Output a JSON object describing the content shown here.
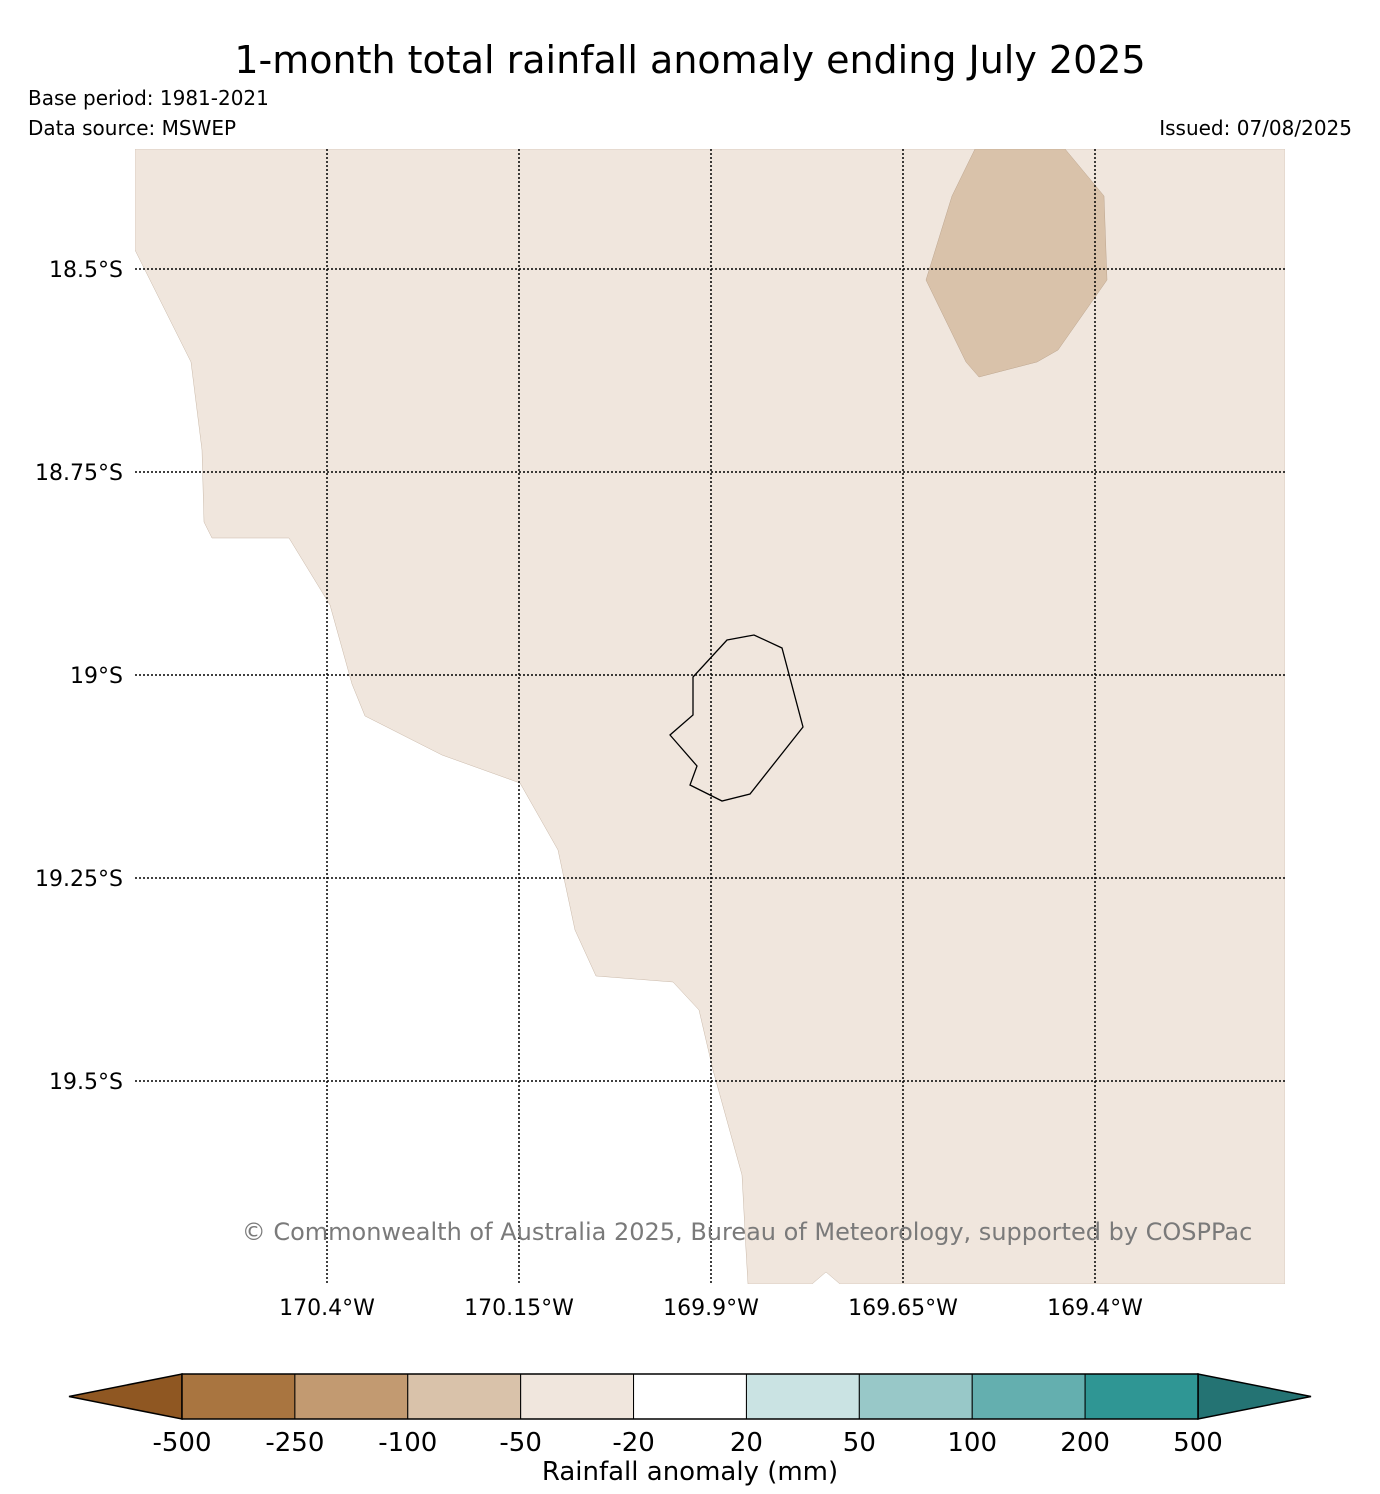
{
  "header": {
    "title": "1-month total rainfall anomaly ending July 2025",
    "base_period": "Base period: 1981-2021",
    "data_source": "Data source: MSWEP",
    "issued": "Issued: 07/08/2025"
  },
  "map": {
    "lat_labels": [
      "18.5°S",
      "18.75°S",
      "19°S",
      "19.25°S",
      "19.5°S"
    ],
    "lon_labels": [
      "170.4°W",
      "170.15°W",
      "169.9°W",
      "169.65°W",
      "169.4°W"
    ],
    "copyright": "© Commonwealth of Australia 2025, Bureau of Meteorology, supported by COSPPac",
    "regions": [
      {
        "name": "light-dry-region",
        "category": "-50 to -20",
        "color": "#f0e6dd"
      },
      {
        "name": "moderate-dry-region",
        "category": "-100 to -50",
        "color": "#d9c2aa"
      }
    ],
    "coastline": "island-coastline"
  },
  "colorbar": {
    "label": "Rainfall anomaly (mm)",
    "ticks": [
      "-500",
      "-250",
      "-100",
      "-50",
      "-20",
      "20",
      "50",
      "100",
      "200",
      "500"
    ],
    "colors": [
      "#a97540",
      "#c29a71",
      "#d9c2aa",
      "#f0e6dd",
      "#ffffff",
      "#cae3e3",
      "#98c8c8",
      "#64afaf",
      "#2f9694"
    ],
    "under_color": "#8f5722",
    "over_color": "#247373"
  }
}
